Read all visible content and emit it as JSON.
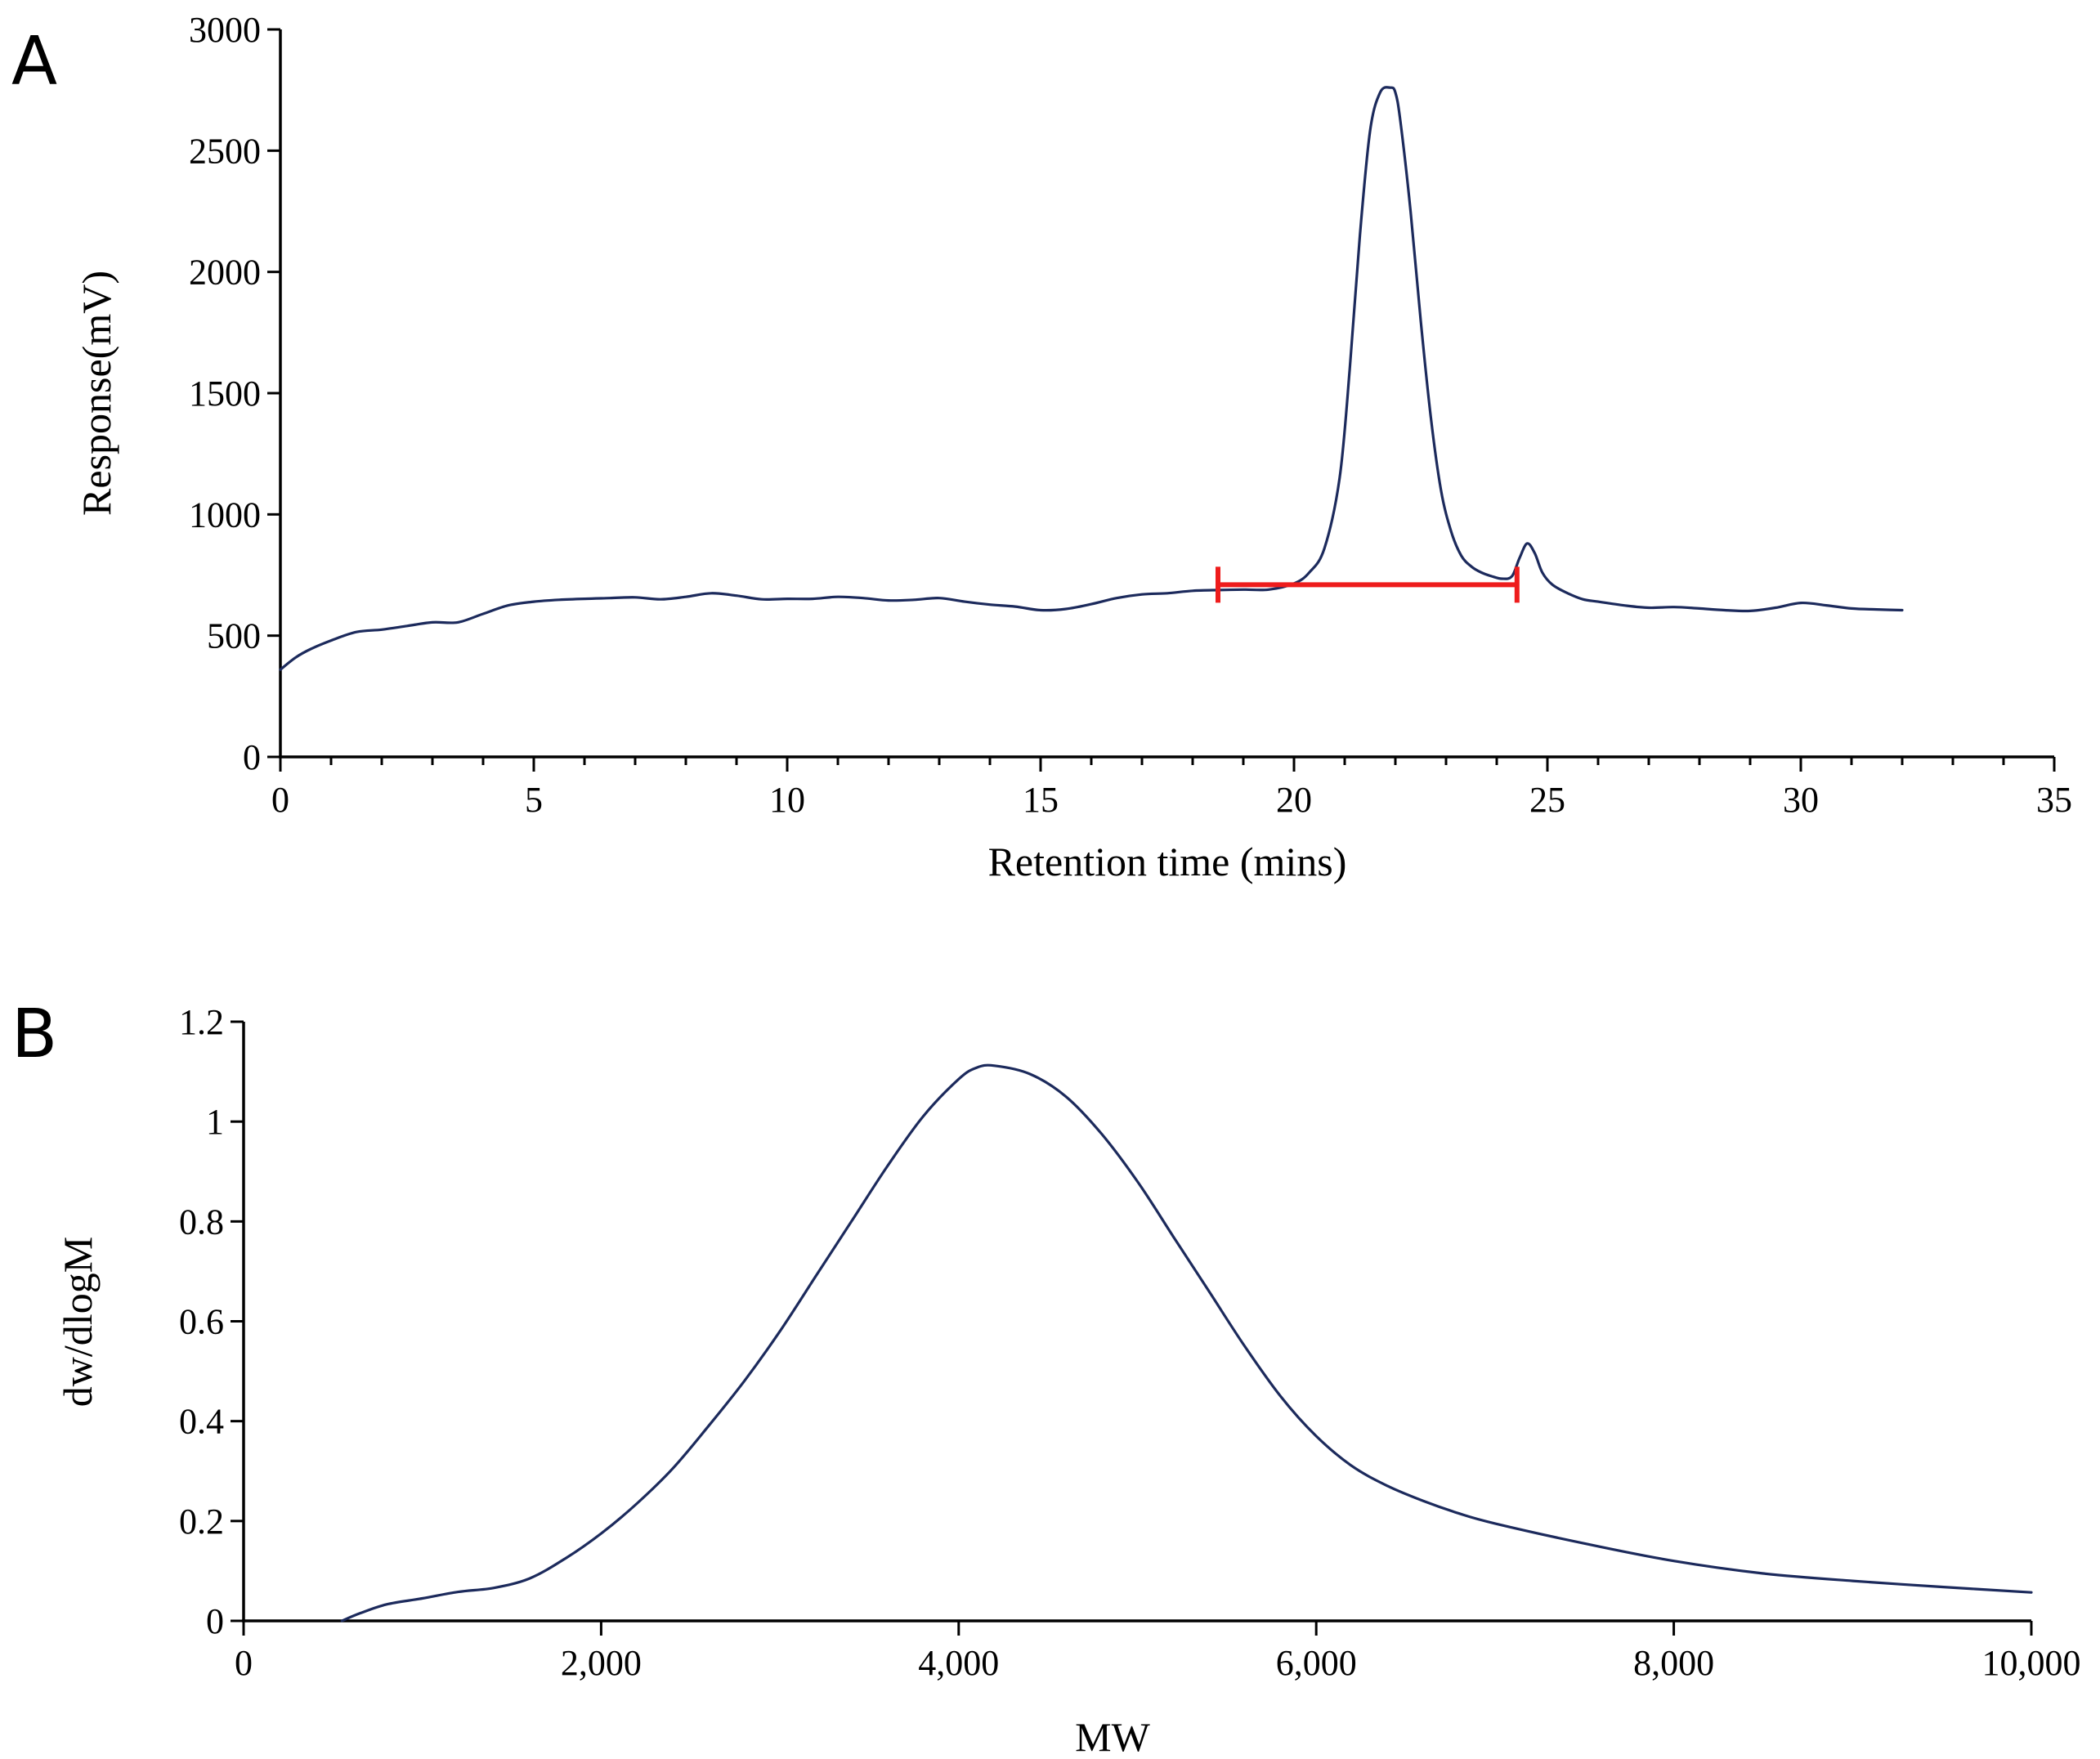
{
  "colors": {
    "series": "#1c2a5c",
    "range_bar": "#ee1c1c",
    "axis": "#000000"
  },
  "chart_data": [
    {
      "panel": "A",
      "type": "line",
      "title": "",
      "xlabel": "Retention time (mins)",
      "ylabel": "Response(mV)",
      "xlim": [
        0,
        35
      ],
      "ylim": [
        0,
        3000
      ],
      "xticks": [
        0,
        5,
        10,
        15,
        20,
        25,
        30,
        35
      ],
      "xtick_labels": [
        "0",
        "5",
        "10",
        "15",
        "20",
        "25",
        "30",
        "35"
      ],
      "minor_xtick_step": 1,
      "yticks": [
        0,
        500,
        1000,
        1500,
        2000,
        2500,
        3000
      ],
      "ytick_labels": [
        "0",
        "500",
        "1000",
        "1500",
        "2000",
        "2500",
        "3000"
      ],
      "grid": false,
      "series": [
        {
          "name": "Response",
          "x": [
            0,
            0.3,
            0.6,
            1,
            1.5,
            2,
            2.5,
            3,
            3.5,
            4,
            4.5,
            5,
            5.5,
            6,
            6.5,
            7,
            7.5,
            8,
            8.5,
            9,
            9.5,
            10,
            10.5,
            11,
            11.5,
            12,
            12.5,
            13,
            13.5,
            14,
            14.5,
            15,
            15.5,
            16,
            16.5,
            17,
            17.5,
            18,
            18.5,
            19,
            19.5,
            20,
            20.3,
            20.6,
            20.9,
            21.1,
            21.3,
            21.5,
            21.7,
            21.9,
            22.0,
            22.1,
            22.3,
            22.5,
            22.7,
            22.9,
            23.1,
            23.3,
            23.5,
            23.7,
            23.9,
            24.1,
            24.3,
            24.45,
            24.6,
            24.75,
            24.9,
            25.1,
            25.4,
            25.7,
            26,
            26.5,
            27,
            27.5,
            28,
            28.5,
            29,
            29.5,
            30,
            30.5,
            31,
            31.5,
            32
          ],
          "y": [
            360,
            410,
            445,
            480,
            515,
            525,
            540,
            555,
            555,
            590,
            625,
            640,
            648,
            652,
            655,
            658,
            650,
            660,
            675,
            665,
            650,
            652,
            652,
            660,
            655,
            645,
            648,
            655,
            640,
            628,
            620,
            605,
            610,
            630,
            655,
            670,
            675,
            685,
            688,
            690,
            690,
            715,
            760,
            860,
            1150,
            1600,
            2150,
            2580,
            2740,
            2760,
            2740,
            2620,
            2250,
            1800,
            1400,
            1100,
            930,
            830,
            785,
            760,
            745,
            735,
            745,
            820,
            880,
            840,
            760,
            710,
            675,
            650,
            640,
            625,
            615,
            618,
            612,
            605,
            602,
            615,
            635,
            625,
            612,
            608,
            605
          ]
        }
      ],
      "annotations": [
        {
          "type": "range_bar",
          "x_start": 18.5,
          "x_end": 24.4,
          "y": 710
        }
      ]
    },
    {
      "panel": "B",
      "type": "line",
      "title": "",
      "xlabel": "MW",
      "ylabel": "dw/dlogM",
      "xlim": [
        0,
        10000
      ],
      "ylim": [
        0,
        1.2
      ],
      "xticks": [
        0,
        2000,
        4000,
        6000,
        8000,
        10000
      ],
      "xtick_labels": [
        "0",
        "2,000",
        "4,000",
        "6,000",
        "8,000",
        "10,000"
      ],
      "yticks": [
        0,
        0.2,
        0.4,
        0.6,
        0.8,
        1,
        1.2
      ],
      "ytick_labels": [
        "0",
        "0.2",
        "0.4",
        "0.6",
        "0.8",
        "1",
        "1.2"
      ],
      "grid": false,
      "series": [
        {
          "name": "dw/dlogM",
          "x": [
            550,
            650,
            800,
            1000,
            1200,
            1400,
            1600,
            1800,
            2000,
            2200,
            2400,
            2600,
            2800,
            3000,
            3200,
            3400,
            3600,
            3800,
            4000,
            4100,
            4200,
            4400,
            4600,
            4800,
            5000,
            5200,
            5400,
            5600,
            5800,
            6000,
            6200,
            6400,
            6600,
            6800,
            7000,
            7500,
            8000,
            8500,
            9000,
            9500,
            10000
          ],
          "y": [
            0.0,
            0.015,
            0.033,
            0.045,
            0.058,
            0.066,
            0.085,
            0.125,
            0.175,
            0.235,
            0.305,
            0.39,
            0.48,
            0.58,
            0.69,
            0.8,
            0.91,
            1.01,
            1.085,
            1.108,
            1.112,
            1.095,
            1.05,
            0.975,
            0.88,
            0.77,
            0.66,
            0.55,
            0.45,
            0.37,
            0.31,
            0.27,
            0.24,
            0.215,
            0.195,
            0.155,
            0.12,
            0.095,
            0.08,
            0.068,
            0.057
          ]
        }
      ]
    }
  ]
}
